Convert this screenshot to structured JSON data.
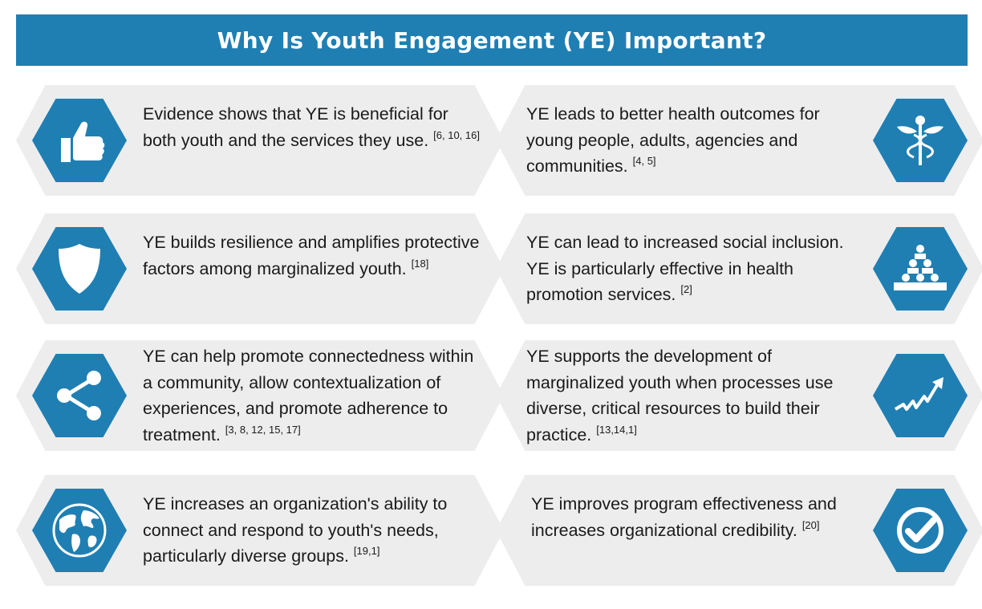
{
  "title": "Why Is Youth Engagement (YE) Important?",
  "colors": {
    "accent": "#1f7fb3",
    "card_bg": "#ededed"
  },
  "cards": [
    {
      "icon": "thumbs-up-icon",
      "text": "Evidence shows that YE is beneficial for both youth and the services they use.",
      "ref": "[6, 10, 16]"
    },
    {
      "icon": "caduceus-icon",
      "text": "YE leads to better health outcomes for young people, adults, agencies and communities.",
      "ref": "[4, 5]"
    },
    {
      "icon": "shield-icon",
      "text": "YE builds resilience and amplifies protective factors among marginalized youth.",
      "ref": "[18]"
    },
    {
      "icon": "group-pyramid-icon",
      "text": "YE can lead to increased social inclusion. YE is particularly effective in health promotion services.",
      "ref": "[2]"
    },
    {
      "icon": "share-icon",
      "text": "YE can help promote connectedness within a community, allow contextualization of experiences, and promote adherence to treatment.",
      "ref": "[3, 8, 12, 15, 17]"
    },
    {
      "icon": "trend-arrow-icon",
      "text": "YE supports the development of marginalized youth when processes use diverse, critical resources to build their practice.",
      "ref": "[13,14,1]"
    },
    {
      "icon": "globe-icon",
      "text": "YE increases an organization's ability to connect and respond to youth's needs, particularly diverse groups.",
      "ref": "[19,1]"
    },
    {
      "icon": "checkmark-icon",
      "text": "YE improves program effectiveness and increases organizational credibility.",
      "ref": "[20]"
    }
  ]
}
